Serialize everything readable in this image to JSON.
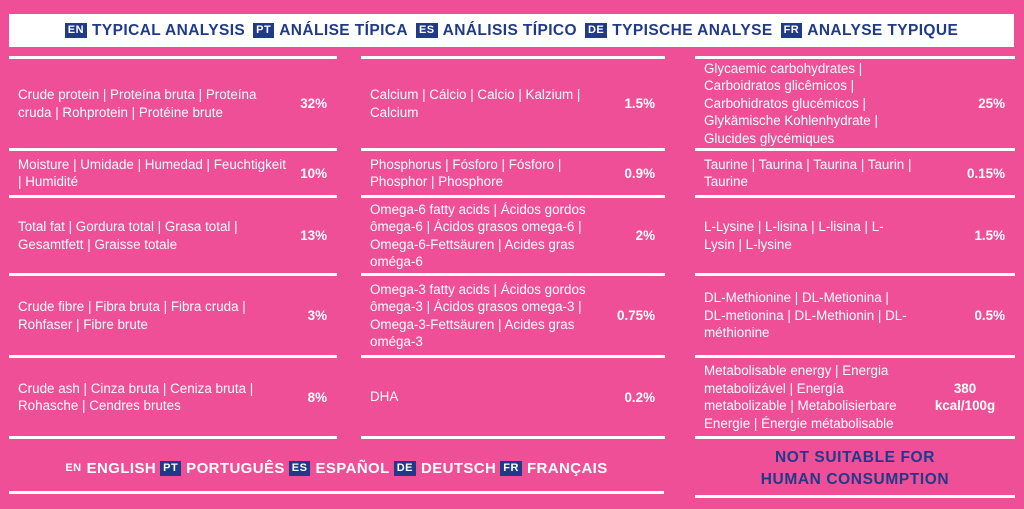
{
  "header": [
    {
      "code": "EN",
      "title": "TYPICAL ANALYSIS"
    },
    {
      "code": "PT",
      "title": "ANÁLISE TÍPICA"
    },
    {
      "code": "ES",
      "title": "ANÁLISIS TÍPICO"
    },
    {
      "code": "DE",
      "title": "TYPISCHE ANALYSE"
    },
    {
      "code": "FR",
      "title": "ANALYSE TYPIQUE"
    }
  ],
  "columns": [
    [
      {
        "label": "Crude protein | Proteína bruta | Proteína cruda | Rohprotein | Protéine brute",
        "value": "32%"
      },
      {
        "label": "Moisture | Umidade | Humedad | Feuchtigkeit | Humidité",
        "value": "10%"
      },
      {
        "label": "Total fat | Gordura total | Grasa total | Gesamtfett | Graisse totale",
        "value": "13%"
      },
      {
        "label": "Crude fibre | Fibra bruta | Fibra cruda | Rohfaser | Fibre brute",
        "value": "3%"
      },
      {
        "label": "Crude ash | Cinza bruta | Ceniza bruta | Rohasche | Cendres brutes",
        "value": "8%"
      }
    ],
    [
      {
        "label": "Calcium | Cálcio | Calcio | Kalzium | Calcium",
        "value": "1.5%"
      },
      {
        "label": "Phosphorus | Fósforo | Fósforo | Phosphor | Phosphore",
        "value": "0.9%"
      },
      {
        "label": "Omega-6 fatty acids | Ácidos gordos ômega-6 | Ácidos grasos omega-6 | Omega-6-Fettsäuren | Acides gras oméga-6",
        "value": "2%"
      },
      {
        "label": "Omega-3 fatty acids | Ácidos gordos ômega-3 | Ácidos grasos omega-3 | Omega-3-Fettsäuren | Acides gras oméga-3",
        "value": "0.75%"
      },
      {
        "label": "DHA",
        "value": "0.2%"
      }
    ],
    [
      {
        "label": "Glycaemic carbohydrates | Carboidratos glicêmicos | Carbohidratos glucémicos | Glykämische Kohlenhydrate | Glucides glycémiques",
        "value": "25%"
      },
      {
        "label": "Taurine | Taurina | Taurina | Taurin | Taurine",
        "value": "0.15%"
      },
      {
        "label": "L-Lysine | L-lisina | L-lisina | L-Lysin | L-lysine",
        "value": "1.5%"
      },
      {
        "label": "DL-Methionine | DL-Metionina | DL-metionina | DL-Methionin | DL-méthionine",
        "value": "0.5%"
      },
      {
        "label": "Metabolisable energy | Energia metabolizável | Energía metabolizable | Metabolisierbare Energie | Énergie métabolisable",
        "value": "380 kcal/100g"
      }
    ]
  ],
  "languages": [
    {
      "code": "EN",
      "name": "ENGLISH"
    },
    {
      "code": "PT",
      "name": "PORTUGUÊS"
    },
    {
      "code": "ES",
      "name": "ESPAÑOL"
    },
    {
      "code": "DE",
      "name": "DEUTSCH"
    },
    {
      "code": "FR",
      "name": "FRANÇAIS"
    }
  ],
  "warning": {
    "line1": "NOT SUITABLE FOR",
    "line2": "HUMAN CONSUMPTION"
  },
  "colors": {
    "background": "#ef4f96",
    "navy": "#1f3a8a",
    "white": "#ffffff"
  }
}
